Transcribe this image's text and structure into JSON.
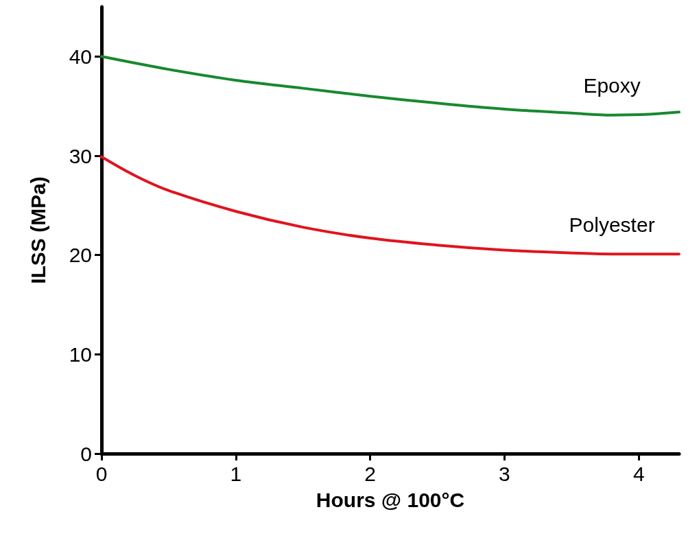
{
  "chart_data": {
    "type": "line",
    "xlabel": "Hours @ 100°C",
    "ylabel": "ILSS (MPa)",
    "xlim": [
      0,
      4.3
    ],
    "xticks": [
      0,
      1,
      2,
      3,
      4
    ],
    "ylim": [
      0,
      45
    ],
    "yticks": [
      0,
      10,
      20,
      30,
      40
    ],
    "grid": false,
    "legend": false,
    "marker": "none",
    "line_style": "solid",
    "series": [
      {
        "name": "Epoxy",
        "color": "#17892f",
        "x": [
          0,
          0.5,
          1,
          1.5,
          2,
          2.5,
          3,
          3.5,
          3.8,
          4.1,
          4.3
        ],
        "values": [
          40,
          38.7,
          37.6,
          36.8,
          36,
          35.3,
          34.7,
          34.3,
          34.1,
          34.2,
          34.4
        ]
      },
      {
        "name": "Polyester",
        "color": "#e0141e",
        "x": [
          0,
          0.25,
          0.5,
          1,
          1.5,
          2,
          2.5,
          3,
          3.5,
          3.8,
          4.1,
          4.3
        ],
        "values": [
          29.9,
          28,
          26.5,
          24.4,
          22.8,
          21.7,
          21,
          20.5,
          20.2,
          20.1,
          20.1,
          20.1
        ]
      }
    ]
  }
}
